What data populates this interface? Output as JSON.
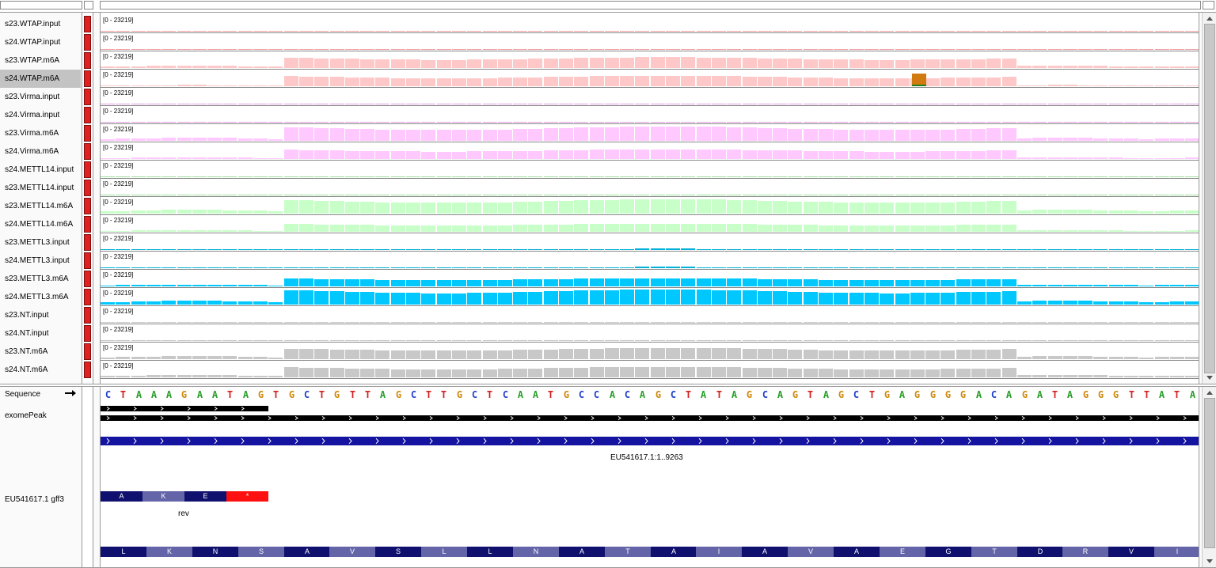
{
  "tracks": [
    {
      "name": "s23.WTAP.input",
      "range": "[0 - 23219]",
      "color": "#f0a0a0",
      "peak": 0.05,
      "flank": 0.02,
      "selected": false
    },
    {
      "name": "s24.WTAP.input",
      "range": "[0 - 23219]",
      "color": "#f0a0a0",
      "peak": 0.05,
      "flank": 0.02,
      "selected": false
    },
    {
      "name": "s23.WTAP.m6A",
      "range": "[0 - 23219]",
      "color": "#ffc8c8",
      "peak": 0.72,
      "flank": 0.15,
      "selected": false
    },
    {
      "name": "s24.WTAP.m6A",
      "range": "[0 - 23219]",
      "color": "#ffc8c8",
      "peak": 0.7,
      "flank": 0.08,
      "selected": true
    },
    {
      "name": "s23.Virma.input",
      "range": "[0 - 23219]",
      "color": "#e0a0e0",
      "peak": 0.05,
      "flank": 0.02,
      "selected": false
    },
    {
      "name": "s24.Virma.input",
      "range": "[0 - 23219]",
      "color": "#e0a0e0",
      "peak": 0.05,
      "flank": 0.02,
      "selected": false
    },
    {
      "name": "s23.Virma.m6A",
      "range": "[0 - 23219]",
      "color": "#ffc8ff",
      "peak": 0.95,
      "flank": 0.2,
      "selected": false
    },
    {
      "name": "s24.Virma.m6A",
      "range": "[0 - 23219]",
      "color": "#ffc8ff",
      "peak": 0.65,
      "flank": 0.1,
      "selected": false
    },
    {
      "name": "s24.METTL14.input",
      "range": "[0 - 23219]",
      "color": "#a0e0a0",
      "peak": 0.05,
      "flank": 0.02,
      "selected": false
    },
    {
      "name": "s23.METTL14.input",
      "range": "[0 - 23219]",
      "color": "#a0e0a0",
      "peak": 0.05,
      "flank": 0.02,
      "selected": false
    },
    {
      "name": "s23.METTL14.m6A",
      "range": "[0 - 23219]",
      "color": "#c8ffc8",
      "peak": 0.95,
      "flank": 0.25,
      "selected": false
    },
    {
      "name": "s24.METTL14.m6A",
      "range": "[0 - 23219]",
      "color": "#c8ffc8",
      "peak": 0.55,
      "flank": 0.1,
      "selected": false
    },
    {
      "name": "s23.METTL3.input",
      "range": "[0 - 23219]",
      "color": "#00b0d8",
      "peak": 0.08,
      "flank": 0.03,
      "selected": false
    },
    {
      "name": "s24.METTL3.input",
      "range": "[0 - 23219]",
      "color": "#00b0d8",
      "peak": 0.08,
      "flank": 0.03,
      "selected": false
    },
    {
      "name": "s23.METTL3.m6A",
      "range": "[0 - 23219]",
      "color": "#00c8ff",
      "peak": 0.55,
      "flank": 0.12,
      "selected": false
    },
    {
      "name": "s24.METTL3.m6A",
      "range": "[0 - 23219]",
      "color": "#00c8ff",
      "peak": 1.0,
      "flank": 0.25,
      "selected": false
    },
    {
      "name": "s23.NT.input",
      "range": "[0 - 23219]",
      "color": "#c8c8c8",
      "peak": 0.03,
      "flank": 0.01,
      "selected": false
    },
    {
      "name": "s24.NT.input",
      "range": "[0 - 23219]",
      "color": "#c8c8c8",
      "peak": 0.03,
      "flank": 0.01,
      "selected": false
    },
    {
      "name": "s23.NT.m6A",
      "range": "[0 - 23219]",
      "color": "#c8c8c8",
      "peak": 0.75,
      "flank": 0.2,
      "selected": false
    },
    {
      "name": "s24.NT.m6A",
      "range": "[0 - 23219]",
      "color": "#c8c8c8",
      "peak": 0.7,
      "flank": 0.15,
      "selected": false
    }
  ],
  "lower": {
    "sequence_label": "Sequence",
    "exomepeak_label": "exomePeak",
    "gff_label": "EU541617.1 gff3",
    "feature_label": "EU541617.1:1..9263",
    "rev_label": "rev",
    "sequence": "CTAAAGAATAGTGCTGTTAGCTTGCTCAATGCCACAGCTATAGCAGTAGCTGAGGGGACAGATAGGGTTATA",
    "base_colors": {
      "A": "#2aa02a",
      "C": "#1f3fd0",
      "G": "#d08a10",
      "T": "#d02020"
    },
    "top_frame": [
      "A",
      "K",
      "E",
      "*"
    ],
    "bottom_frame": [
      "L",
      "K",
      "N",
      "S",
      "A",
      "V",
      "S",
      "L",
      "L",
      "N",
      "A",
      "T",
      "A",
      "I",
      "A",
      "V",
      "A",
      "E",
      "G",
      "T",
      "D",
      "R",
      "V",
      "I"
    ]
  }
}
